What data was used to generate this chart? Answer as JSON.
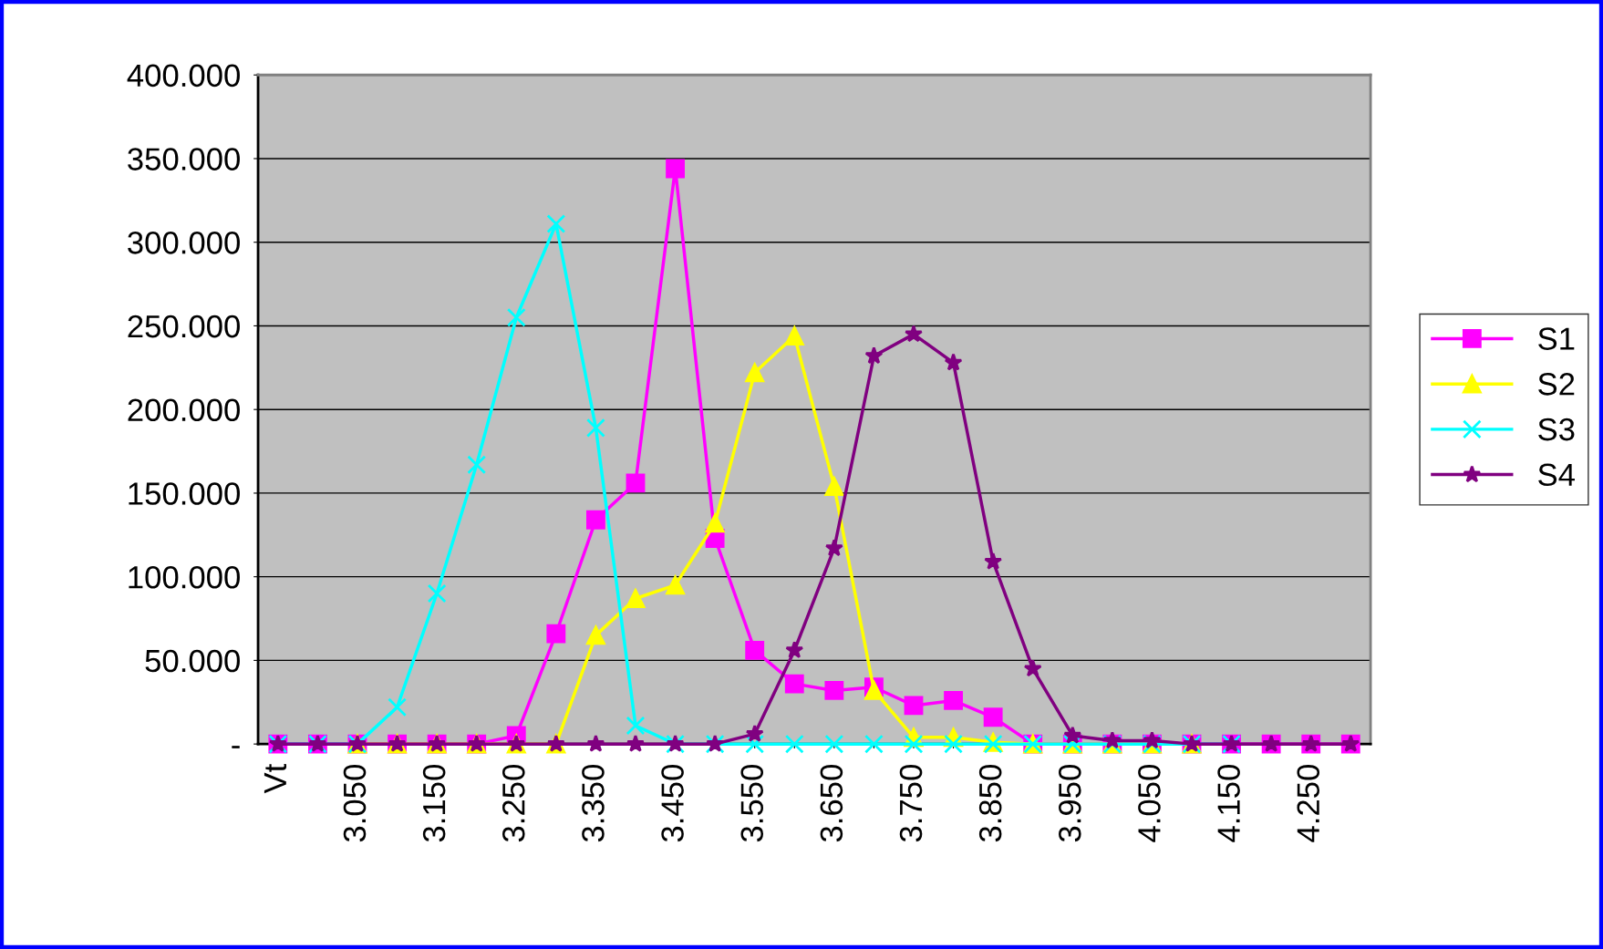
{
  "chart_data": {
    "type": "line",
    "categories": [
      "Vt",
      null,
      "3.050",
      null,
      "3.150",
      null,
      "3.250",
      null,
      "3.350",
      null,
      "3.450",
      null,
      "3.550",
      null,
      "3.650",
      null,
      "3.750",
      null,
      "3.850",
      null,
      "3.950",
      null,
      "4.050",
      null,
      "4.150",
      null,
      "4.250",
      null
    ],
    "series": [
      {
        "name": "S1",
        "color": "#ff00ff",
        "marker": "square",
        "values": [
          0,
          0,
          0,
          0,
          0,
          0,
          5,
          66,
          134,
          156,
          344,
          123,
          56,
          36,
          32,
          34,
          23,
          26,
          16,
          0,
          0,
          0,
          0,
          0,
          0,
          0,
          0,
          0
        ]
      },
      {
        "name": "S2",
        "color": "#ffff00",
        "marker": "triangle",
        "values": [
          null,
          null,
          0,
          0,
          0,
          0,
          0,
          0,
          65,
          87,
          95,
          132,
          222,
          244,
          154,
          32,
          4,
          4,
          1,
          0,
          0,
          0,
          0,
          0,
          null,
          null,
          null,
          null
        ]
      },
      {
        "name": "S3",
        "color": "#00ffff",
        "marker": "cross",
        "values": [
          0,
          0,
          0,
          22,
          90,
          167,
          255,
          311,
          189,
          11,
          0,
          0,
          0,
          0,
          0,
          0,
          0,
          0,
          0,
          0,
          0,
          0,
          0,
          0,
          0,
          null,
          null,
          null
        ]
      },
      {
        "name": "S4",
        "color": "#800080",
        "marker": "star",
        "values": [
          0,
          0,
          0,
          0,
          0,
          0,
          0,
          0,
          0,
          0,
          0,
          0,
          6,
          56,
          117,
          232,
          245,
          228,
          109,
          45,
          5,
          2,
          2,
          0,
          0,
          0,
          0,
          0
        ]
      }
    ],
    "ylim": [
      0,
      400
    ],
    "yticks": [
      {
        "value": 0,
        "label": "-"
      },
      {
        "value": 50,
        "label": "50.000"
      },
      {
        "value": 100,
        "label": "100.000"
      },
      {
        "value": 150,
        "label": "150.000"
      },
      {
        "value": 200,
        "label": "200.000"
      },
      {
        "value": 250,
        "label": "250.000"
      },
      {
        "value": 300,
        "label": "300.000"
      },
      {
        "value": 350,
        "label": "350.000"
      },
      {
        "value": 400,
        "label": "400.000"
      }
    ],
    "grid": "y",
    "legend": "right",
    "line_style": "solid"
  }
}
